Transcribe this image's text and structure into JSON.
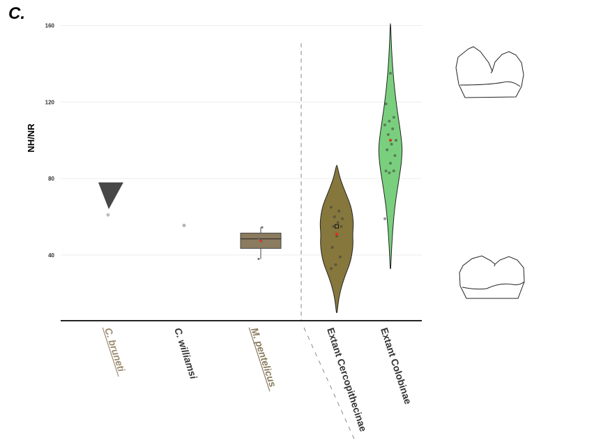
{
  "panel_label": "C.",
  "colors": {
    "brunetti": "#9b8a70",
    "pentelicus": "#8b7b5f",
    "cercopithecinae": "#86773c",
    "colobinae": "#79cf7d",
    "triangle": "#474747",
    "text_dark": "#333333"
  },
  "chart_data": {
    "type": "violin",
    "title": "",
    "xlabel": "",
    "ylabel": "NH/NR",
    "ylim": [
      7,
      162
    ],
    "y_ticks": [
      40,
      80,
      120,
      160
    ],
    "grid": true,
    "legend": "none",
    "categories": [
      "C. bruneti",
      "C. williamsi",
      "M. pentelicus",
      "Extant Cercopithecinae",
      "Extant Colobinae"
    ],
    "series": [
      {
        "category": "C. bruneti",
        "kind": "triangle",
        "triangle_top": 78,
        "triangle_bottom": 64,
        "points": [
          61
        ]
      },
      {
        "category": "C. williamsi",
        "kind": "points",
        "points": [
          55.5
        ]
      },
      {
        "category": "M. pentelicus",
        "kind": "box",
        "q1": 43.5,
        "median": 48.5,
        "q3": 51.5,
        "whisker_low": 38,
        "whisker_high": 54.5,
        "mean": 47.5,
        "points": [
          38,
          47,
          49,
          54.5
        ]
      },
      {
        "category": "Extant Cercopithecinae",
        "kind": "violin",
        "y": [
          10,
          18,
          25,
          31,
          36,
          41,
          46,
          51,
          56,
          61,
          66,
          71,
          76,
          81,
          87
        ],
        "density": [
          0.02,
          0.13,
          0.33,
          0.58,
          0.8,
          0.92,
          0.98,
          0.95,
          1.0,
          0.95,
          0.83,
          0.6,
          0.37,
          0.17,
          0.02
        ],
        "mean": 51,
        "points": [
          33,
          35,
          39,
          44,
          50,
          55,
          55,
          57,
          59,
          60,
          63,
          65
        ]
      },
      {
        "category": "Extant Colobinae",
        "kind": "violin",
        "y": [
          33,
          45,
          55,
          65,
          75,
          82,
          88,
          95,
          101,
          108,
          115,
          122,
          130,
          138,
          146,
          154,
          161
        ],
        "density": [
          0.02,
          0.11,
          0.22,
          0.36,
          0.6,
          0.78,
          0.92,
          1.0,
          0.92,
          0.76,
          0.59,
          0.44,
          0.3,
          0.19,
          0.11,
          0.05,
          0.02
        ],
        "mean": 100,
        "points": [
          59,
          83,
          84,
          84,
          88,
          92,
          95,
          98,
          100,
          103,
          106,
          108,
          110,
          112,
          119,
          135
        ]
      }
    ]
  }
}
